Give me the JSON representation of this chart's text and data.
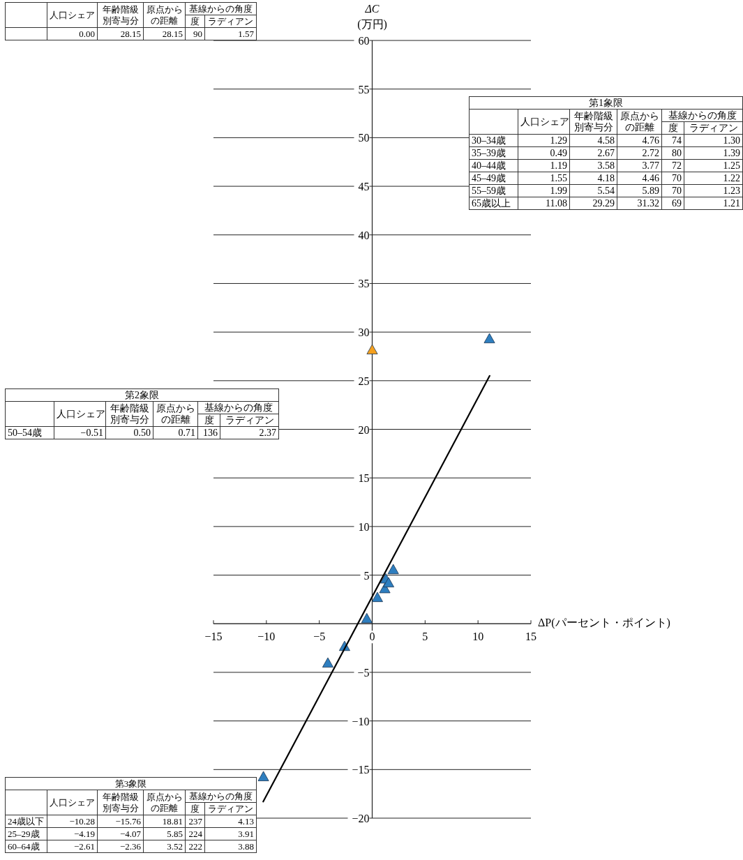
{
  "chart_data": [
    {
      "type": "other",
      "categories": [
        "人口シェア",
        "年齢階級別寄与分",
        "原点からの距離",
        "度",
        "ラディアン"
      ],
      "annotations": [
        "基線からの角度"
      ],
      "y_categories": [
        null
      ],
      "cell_labels": [
        [
          "0.00",
          "28.15",
          "28.15",
          "90",
          "1.57"
        ]
      ]
    },
    {
      "type": "scatter",
      "xlabel": "ΔP(パーセント・ポイント)",
      "ylabel": "ΔC\n(万円)",
      "xlim": [
        -15,
        15
      ],
      "xticks": [
        -15,
        -10,
        -5,
        0,
        5,
        10,
        15
      ],
      "ylim": [
        -20,
        60
      ],
      "yticks": [
        -20,
        -15,
        -10,
        -5,
        {
          "value": 0,
          "label": null
        },
        5,
        10,
        15,
        20,
        25,
        30,
        35,
        40,
        45,
        50,
        55,
        60
      ],
      "grid": "y",
      "marker": "triangle",
      "series": [
        {
          "color": "#2e7ebf",
          "x": [
            1.29,
            0.49,
            1.19,
            1.55,
            1.99,
            11.08,
            -0.51,
            -10.28,
            -4.19,
            -2.61
          ],
          "values": [
            4.58,
            2.67,
            3.58,
            4.18,
            5.54,
            29.29,
            0.5,
            -15.76,
            -4.07,
            -2.36
          ]
        },
        {
          "color": "#f5a01e",
          "x": [
            0
          ],
          "values": [
            28.15
          ]
        },
        {
          "type": "line",
          "color": "#000000",
          "marker": "none",
          "line_style": "solid",
          "x": [
            -10.3,
            11.1
          ],
          "values": [
            -18.3,
            25.5
          ]
        }
      ]
    },
    {
      "type": "other",
      "title": "第1象限",
      "categories": [
        "人口シェア",
        "年齢階級別寄与分",
        "原点からの距離",
        "度",
        "ラディアン"
      ],
      "annotations": [
        "基線からの角度"
      ],
      "y_categories": [
        "30–34歳",
        "35–39歳",
        "40–44歳",
        "45–49歳",
        "55–59歳",
        "65歳以上"
      ],
      "cell_labels": [
        [
          "1.29",
          "4.58",
          "4.76",
          "74",
          "1.30"
        ],
        [
          "0.49",
          "2.67",
          "2.72",
          "80",
          "1.39"
        ],
        [
          "1.19",
          "3.58",
          "3.77",
          "72",
          "1.25"
        ],
        [
          "1.55",
          "4.18",
          "4.46",
          "70",
          "1.22"
        ],
        [
          "1.99",
          "5.54",
          "5.89",
          "70",
          "1.23"
        ],
        [
          "11.08",
          "29.29",
          "31.32",
          "69",
          "1.21"
        ]
      ]
    },
    {
      "type": "other",
      "title": "第2象限",
      "categories": [
        "人口シェア",
        "年齢階級別寄与分",
        "原点からの距離",
        "度",
        "ラディアン"
      ],
      "annotations": [
        "基線からの角度"
      ],
      "y_categories": [
        "50–54歳"
      ],
      "cell_labels": [
        [
          "−0.51",
          "0.50",
          "0.71",
          "136",
          "2.37"
        ]
      ]
    },
    {
      "type": "other",
      "title": "第3象限",
      "categories": [
        "人口シェア",
        "年齢階級別寄与分",
        "原点からの距離",
        "度",
        "ラディアン"
      ],
      "annotations": [
        "基線からの角度"
      ],
      "y_categories": [
        "24歳以下",
        "25–29歳",
        "60–64歳"
      ],
      "cell_labels": [
        [
          "−10.28",
          "−15.76",
          "18.81",
          "237",
          "4.13"
        ],
        [
          "−4.19",
          "−4.07",
          "5.85",
          "224",
          "3.91"
        ],
        [
          "−2.61",
          "−2.36",
          "3.52",
          "222",
          "3.88"
        ]
      ]
    }
  ]
}
